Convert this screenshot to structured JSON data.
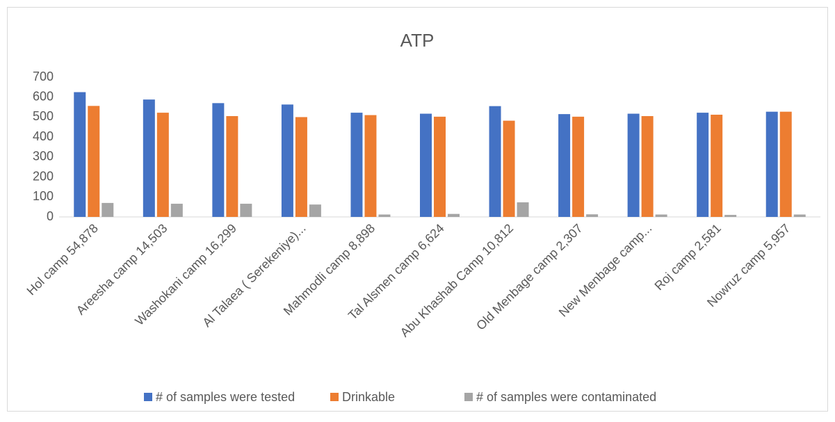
{
  "chart_data": {
    "type": "bar",
    "title": "ATP",
    "categories": [
      "Hol camp 54,878",
      "Areesha camp 14,503",
      "Washokani camp 16,299",
      "Al Talaea ( Serekeniye)...",
      "Mahmodli camp 8,898",
      "Tal Alsmen  camp 6,624",
      "Abu Khashab Camp 10,812",
      "Old Menbage camp 2,307",
      "New Menbage camp...",
      "Roj camp 2,581",
      "Nowruz camp 5,957"
    ],
    "series": [
      {
        "name": "# of samples were tested",
        "color": "#4472c4",
        "values": [
          625,
          588,
          570,
          563,
          522,
          517,
          555,
          515,
          517,
          522,
          527
        ]
      },
      {
        "name": "Drinkable",
        "color": "#ed7d31",
        "values": [
          556,
          522,
          505,
          500,
          510,
          502,
          482,
          502,
          505,
          512,
          527
        ]
      },
      {
        "name": "# of samples were contaminated",
        "color": "#a5a5a5",
        "values": [
          70,
          66,
          66,
          62,
          12,
          15,
          73,
          13,
          12,
          10,
          12
        ]
      }
    ],
    "ylim": [
      0,
      700
    ],
    "yticks": [
      0,
      100,
      200,
      300,
      400,
      500,
      600,
      700
    ],
    "grid": false,
    "legend": "bottom"
  }
}
